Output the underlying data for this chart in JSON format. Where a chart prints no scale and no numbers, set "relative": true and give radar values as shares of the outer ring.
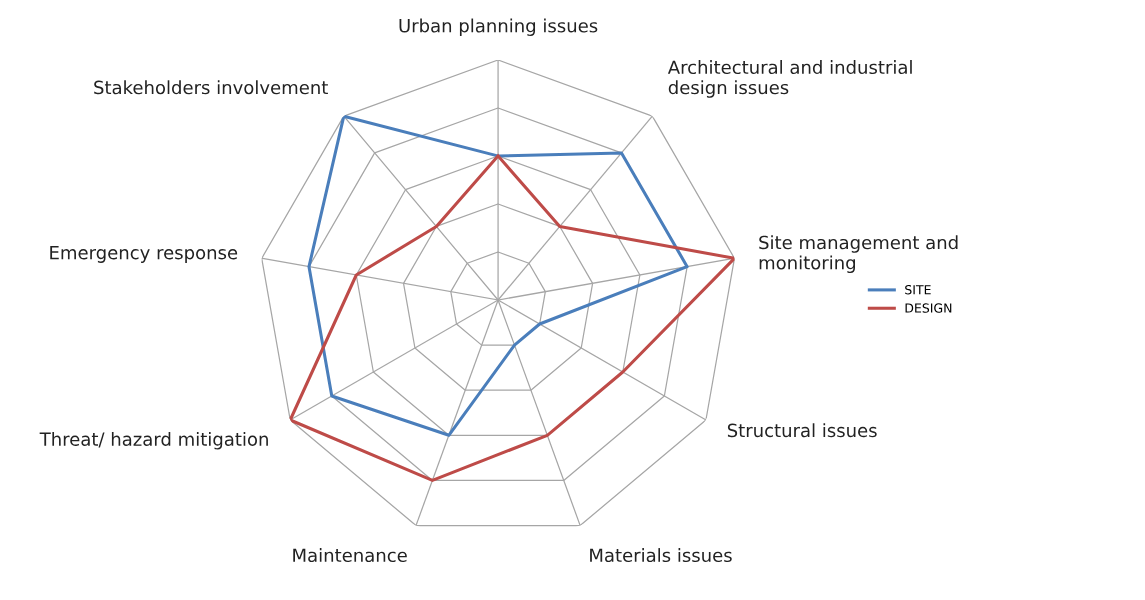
{
  "chart_data": {
    "type": "radar",
    "relative": true,
    "grid": true,
    "legend": "right",
    "categories": [
      "Urban planning issues",
      "Architectural and industrial\ndesign issues",
      "Site management and\nmonitoring",
      "Structural issues",
      "Materials issues",
      "Maintenance",
      "Threat/ hazard mitigation",
      "Emergency response",
      "Stakeholders involvement"
    ],
    "series": [
      {
        "name": "SITE",
        "color": "#4a7ebb",
        "values": [
          0.6,
          0.8,
          0.8,
          0.2,
          0.2,
          0.6,
          0.8,
          0.8,
          1.0
        ]
      },
      {
        "name": "DESIGN",
        "color": "#be4b48",
        "values": [
          0.6,
          0.4,
          1.0,
          0.6,
          0.6,
          0.8,
          1.0,
          0.6,
          0.4
        ]
      }
    ]
  }
}
